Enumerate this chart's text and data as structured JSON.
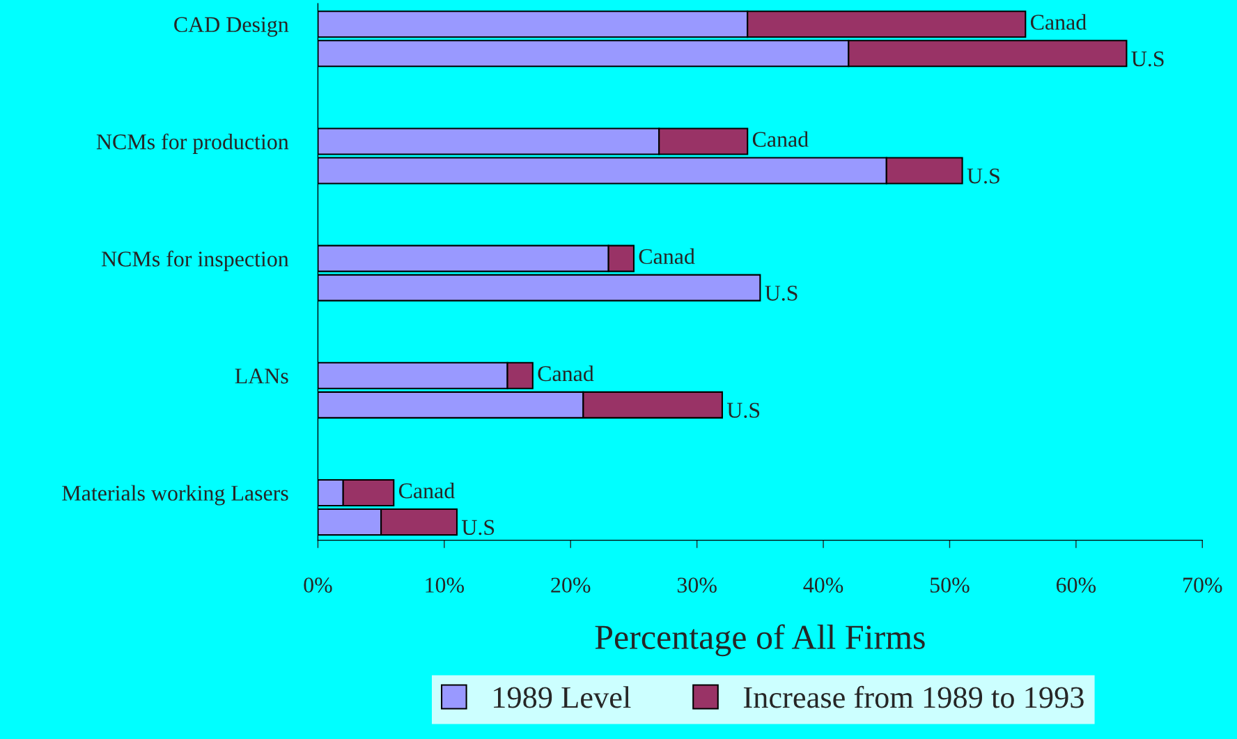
{
  "chart_data": {
    "type": "bar",
    "orientation": "horizontal",
    "stacked": true,
    "xlabel": "Percentage of All Firms",
    "categories": [
      "CAD Design",
      null,
      null,
      null,
      "NCMs for production",
      null,
      null,
      null,
      "NCMs for inspection",
      null,
      null,
      null,
      "LANs",
      null,
      null,
      null,
      "Materials working Lasers",
      null
    ],
    "series": [
      {
        "name": "1989 Level",
        "color": "#9999ff",
        "values": [
          34,
          42,
          null,
          null,
          27,
          45,
          null,
          null,
          23,
          35,
          null,
          null,
          15,
          21,
          null,
          null,
          2,
          5
        ]
      },
      {
        "name": "Increase from 1989 to 1993",
        "color": "#993366",
        "values": [
          22,
          22,
          null,
          null,
          7,
          6,
          null,
          null,
          2,
          null,
          null,
          null,
          2,
          11,
          null,
          null,
          4,
          6
        ]
      }
    ],
    "annotations": [
      "Canad",
      "U.S",
      "Canad",
      "U.S",
      "Canad",
      "U.S",
      "Canad",
      "U.S",
      "Canad",
      "U.S"
    ],
    "xlim": [
      0,
      70
    ],
    "xticks": [
      {
        "value": 0,
        "label": "0%"
      },
      {
        "value": 10,
        "label": "10%"
      },
      {
        "value": 20,
        "label": "20%"
      },
      {
        "value": 30,
        "label": "30%"
      },
      {
        "value": 40,
        "label": "40%"
      },
      {
        "value": 50,
        "label": "50%"
      },
      {
        "value": 60,
        "label": "60%"
      },
      {
        "value": 70,
        "label": "70%"
      }
    ],
    "grid": false,
    "legend": "bottom"
  }
}
